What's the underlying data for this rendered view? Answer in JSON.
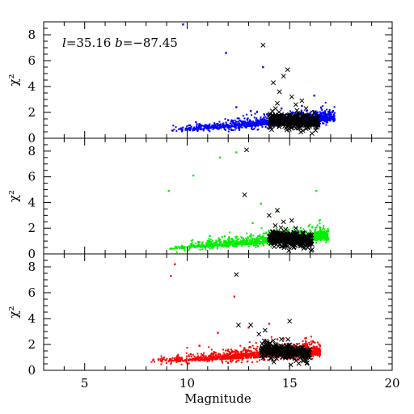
{
  "chart_data": {
    "type": "scatter",
    "xlabel": "Magnitude",
    "xlim": [
      3,
      20
    ],
    "x_ticks": [
      5,
      10,
      15,
      20
    ],
    "annotation": "l=35.16 b=−87.45",
    "annotation_parts": {
      "l_symbol": "l",
      "l_value": "=35.16",
      "b_symbol": "b",
      "b_value": "=−87.45"
    },
    "panels": [
      {
        "ylabel": "χ²",
        "ylim": [
          0,
          9
        ],
        "y_ticks": [
          0,
          2,
          4,
          6,
          8
        ],
        "field_color": "#0000ff",
        "field_cloud": {
          "x_range": [
            9.2,
            17.2
          ],
          "baseline": 0.5,
          "rise": 0.9,
          "spread": 0.35
        },
        "field_outliers": [
          [
            9.8,
            8.8
          ],
          [
            11.9,
            6.6
          ],
          [
            12.4,
            2.4
          ],
          [
            13.7,
            5.5
          ],
          [
            14.6,
            2.3
          ],
          [
            16.2,
            3.3
          ],
          [
            15.6,
            2.5
          ],
          [
            13.1,
            2.1
          ],
          [
            10.6,
            1.1
          ],
          [
            12.0,
            1.4
          ]
        ],
        "stars_cloud": {
          "x_range": [
            14.0,
            16.4
          ],
          "center_y": 1.2,
          "spread": 0.3
        },
        "stars_outliers": [
          [
            13.7,
            7.2
          ],
          [
            14.9,
            5.3
          ],
          [
            14.2,
            4.3
          ],
          [
            14.7,
            4.8
          ],
          [
            15.1,
            3.2
          ],
          [
            14.4,
            2.7
          ],
          [
            15.6,
            2.9
          ],
          [
            15.8,
            2.3
          ],
          [
            16.2,
            2.0
          ],
          [
            14.5,
            3.6
          ],
          [
            15.3,
            2.6
          ]
        ],
        "show_annotation": true
      },
      {
        "ylabel": "χ²",
        "ylim": [
          0,
          9
        ],
        "y_ticks": [
          0,
          2,
          4,
          6,
          8
        ],
        "field_color": "#00ee00",
        "field_cloud": {
          "x_range": [
            9.0,
            16.9
          ],
          "baseline": 0.35,
          "rise": 0.8,
          "spread": 0.35
        },
        "field_outliers": [
          [
            11.6,
            7.5
          ],
          [
            12.4,
            7.9
          ],
          [
            10.3,
            6.1
          ],
          [
            9.1,
            4.9
          ],
          [
            16.3,
            4.9
          ],
          [
            13.6,
            3.9
          ],
          [
            14.4,
            3.3
          ],
          [
            13.2,
            2.4
          ],
          [
            11.1,
            1.4
          ]
        ],
        "stars_cloud": {
          "x_range": [
            14.0,
            16.1
          ],
          "center_y": 1.0,
          "spread": 0.3
        },
        "stars_outliers": [
          [
            12.9,
            8.1
          ],
          [
            12.8,
            4.6
          ],
          [
            14.4,
            3.4
          ],
          [
            14.0,
            3.0
          ],
          [
            14.7,
            2.5
          ],
          [
            14.3,
            2.2
          ],
          [
            15.1,
            2.6
          ],
          [
            14.8,
            1.9
          ],
          [
            15.3,
            2.0
          ]
        ],
        "show_annotation": false
      },
      {
        "ylabel": "χ²",
        "ylim": [
          0,
          9
        ],
        "y_ticks": [
          0,
          2,
          4,
          6,
          8
        ],
        "field_color": "#ff0000",
        "field_cloud": {
          "x_range": [
            8.2,
            16.5
          ],
          "baseline": 0.6,
          "rise": 0.6,
          "spread": 0.4
        },
        "field_outliers": [
          [
            9.4,
            8.2
          ],
          [
            9.2,
            7.3
          ],
          [
            12.3,
            5.7
          ],
          [
            11.5,
            2.9
          ],
          [
            13.0,
            3.3
          ],
          [
            14.0,
            3.6
          ],
          [
            14.4,
            2.4
          ],
          [
            15.8,
            2.5
          ],
          [
            10.6,
            1.9
          ]
        ],
        "stars_cloud": {
          "x_range": [
            13.6,
            16.0
          ],
          "center_y": 1.3,
          "spread": 0.3
        },
        "stars_outliers": [
          [
            12.4,
            7.4
          ],
          [
            12.5,
            3.5
          ],
          [
            13.1,
            3.5
          ],
          [
            13.5,
            2.8
          ],
          [
            13.8,
            3.1
          ],
          [
            15.0,
            3.8
          ],
          [
            14.2,
            2.3
          ],
          [
            13.9,
            2.0
          ],
          [
            14.6,
            2.4
          ]
        ],
        "show_annotation": false
      }
    ]
  }
}
